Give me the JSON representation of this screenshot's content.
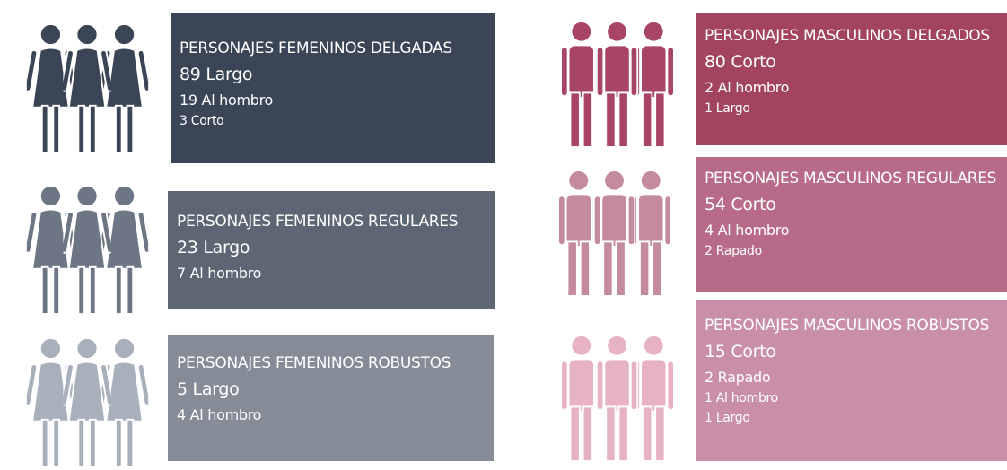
{
  "panels": [
    {
      "title": "PERSONAJES FEMENINOS DELGADAS",
      "lines": [
        "89 Largo",
        "19 Al hombro",
        "3 Corto"
      ]
    },
    {
      "title": "PERSONAJES FEMENINOS REGULARES",
      "lines": [
        "23 Largo",
        "7 Al hombro"
      ]
    },
    {
      "title": "PERSONAJES FEMENINOS ROBUSTOS",
      "lines": [
        "5 Largo",
        "4 Al hombro"
      ]
    },
    {
      "title": "PERSONAJES MASCULINOS DELGADOS",
      "lines": [
        "80 Corto",
        "2 Al hombro",
        "1 Largo"
      ]
    },
    {
      "title": "PERSONAJES MASCULINOS REGULARES",
      "lines": [
        "54 Corto",
        "4 Al hombro",
        "2 Rapado"
      ]
    },
    {
      "title": "PERSONAJES MASCULINOS ROBUSTOS",
      "lines": [
        "15 Corto",
        "2 Rapado",
        "1 Al hombro",
        "1 Largo"
      ]
    }
  ]
}
